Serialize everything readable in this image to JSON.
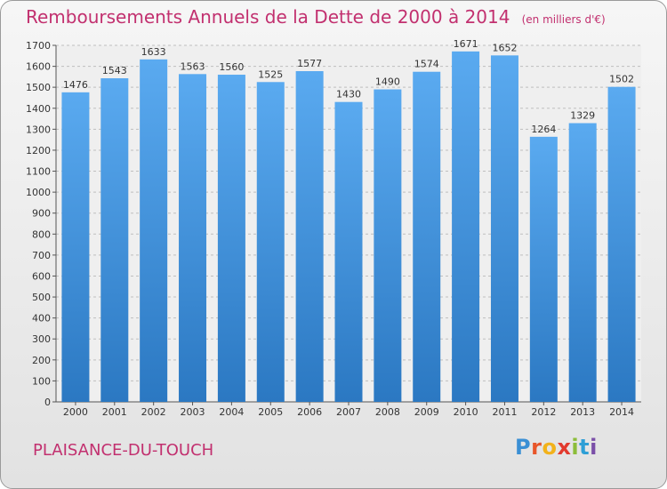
{
  "header": {
    "title": "Remboursements Annuels de la Dette de 2000 à 2014",
    "subtitle": "(en milliers d'€)"
  },
  "footer": {
    "commune": "PLAISANCE-DU-TOUCH",
    "logo_text": "Proxiti",
    "logo_colors": [
      "#3a8fd4",
      "#e8562a",
      "#f2b21b",
      "#e23a2e",
      "#8cbd3a",
      "#2e9fd6",
      "#7b4fa8"
    ]
  },
  "colors": {
    "bar_top": "#5aaaf0",
    "bar_bottom": "#2b78c2",
    "title": "#c2306f"
  },
  "chart_data": {
    "type": "bar",
    "categories": [
      "2000",
      "2001",
      "2002",
      "2003",
      "2004",
      "2005",
      "2006",
      "2007",
      "2008",
      "2009",
      "2010",
      "2011",
      "2012",
      "2013",
      "2014"
    ],
    "values": [
      1476,
      1543,
      1633,
      1563,
      1560,
      1525,
      1577,
      1430,
      1490,
      1574,
      1671,
      1652,
      1264,
      1329,
      1502
    ],
    "ylim": [
      0,
      1700
    ],
    "yticks": [
      0,
      100,
      200,
      300,
      400,
      500,
      600,
      700,
      800,
      900,
      1000,
      1100,
      1200,
      1300,
      1400,
      1500,
      1600,
      1700
    ],
    "grid": true
  }
}
